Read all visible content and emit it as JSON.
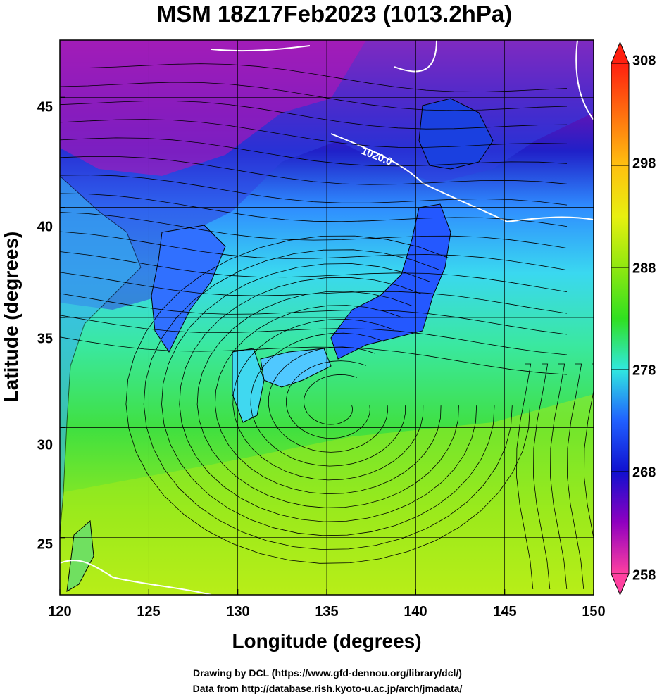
{
  "title": "MSM 18Z17Feb2023 (1013.2hPa)",
  "axes": {
    "xlabel": "Longitude (degrees)",
    "ylabel": "Latitude  (degrees)",
    "xticks": [
      "120",
      "125",
      "130",
      "135",
      "140",
      "145",
      "150"
    ],
    "yticks": [
      "25",
      "30",
      "35",
      "40",
      "45"
    ]
  },
  "colorbar": {
    "ticks": [
      "308",
      "298",
      "288",
      "278",
      "268",
      "258"
    ],
    "colors": [
      "#ff40a0",
      "#9000c0",
      "#1010d0",
      "#2060ff",
      "#40c0ff",
      "#30e8e0",
      "#40e880",
      "#30e020",
      "#90e810",
      "#e8f010",
      "#ffc010",
      "#ff7010",
      "#ff2010"
    ]
  },
  "contour_label": "1020.0",
  "credits": {
    "line1": "Drawing by DCL (https://www.gfd-dennou.org/library/dcl/)",
    "line2": "Data from http://database.rish.kyoto-u.ac.jp/arch/jmadata/"
  },
  "chart_data": {
    "type": "heatmap",
    "title": "MSM 18Z17Feb2023 (1013.2hPa)",
    "xlabel": "Longitude (degrees)",
    "ylabel": "Latitude  (degrees)",
    "xlim": [
      120,
      150
    ],
    "ylim": [
      22.4,
      47.6
    ],
    "x": [
      120,
      125,
      130,
      135,
      140,
      145,
      150
    ],
    "y": [
      25,
      30,
      35,
      40,
      45
    ],
    "colorbar_range": [
      258,
      308
    ],
    "colorbar_ticks": [
      308,
      298,
      288,
      278,
      268,
      258
    ],
    "contour": {
      "value": 1020.0
    },
    "grid": true,
    "cyclone_center": {
      "lon": 135.5,
      "lat": 31
    }
  }
}
